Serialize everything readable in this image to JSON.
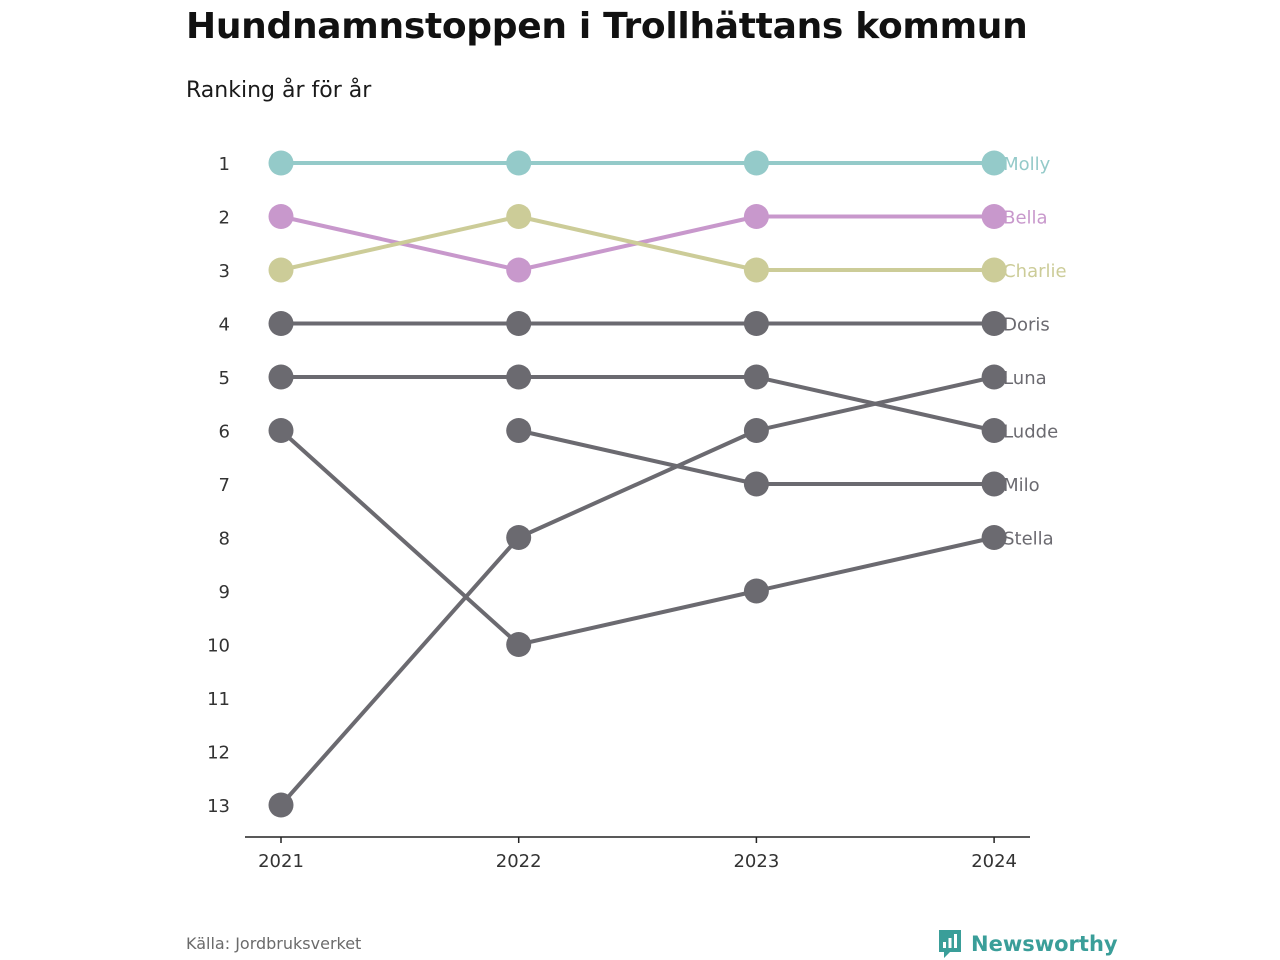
{
  "header": {
    "title": "Hundnamnstoppen i Trollhättans kommun",
    "subtitle": "Ranking år för år"
  },
  "footer": {
    "source": "Källa: Jordbruksverket",
    "brand": "Newsworthy"
  },
  "colors": {
    "brand": "#3a9e99",
    "axis": "#222222",
    "text": "#333333"
  },
  "chart_data": {
    "type": "line",
    "x": [
      "2021",
      "2022",
      "2023",
      "2024"
    ],
    "y_ticks": [
      1,
      2,
      3,
      4,
      5,
      6,
      7,
      8,
      9,
      10,
      11,
      12,
      13
    ],
    "ylim": [
      1,
      13
    ],
    "y_reversed": true,
    "grid": false,
    "legend": "direct labels at right end of lines",
    "series": [
      {
        "name": "Molly",
        "color": "#94cac9",
        "values": [
          1,
          1,
          1,
          1
        ]
      },
      {
        "name": "Bella",
        "color": "#c898cc",
        "values": [
          2,
          3,
          2,
          2
        ]
      },
      {
        "name": "Charlie",
        "color": "#cccc98",
        "values": [
          3,
          2,
          3,
          3
        ]
      },
      {
        "name": "Doris",
        "color": "#6b6a70",
        "values": [
          4,
          4,
          4,
          4
        ]
      },
      {
        "name": "Luna",
        "color": "#6b6a70",
        "values": [
          13,
          8,
          6,
          5
        ]
      },
      {
        "name": "Ludde",
        "color": "#6b6a70",
        "values": [
          5,
          5,
          5,
          6
        ]
      },
      {
        "name": "Milo",
        "color": "#6b6a70",
        "values": [
          null,
          6,
          7,
          7
        ]
      },
      {
        "name": "Stella",
        "color": "#6b6a70",
        "values": [
          6,
          10,
          9,
          8
        ]
      }
    ]
  }
}
